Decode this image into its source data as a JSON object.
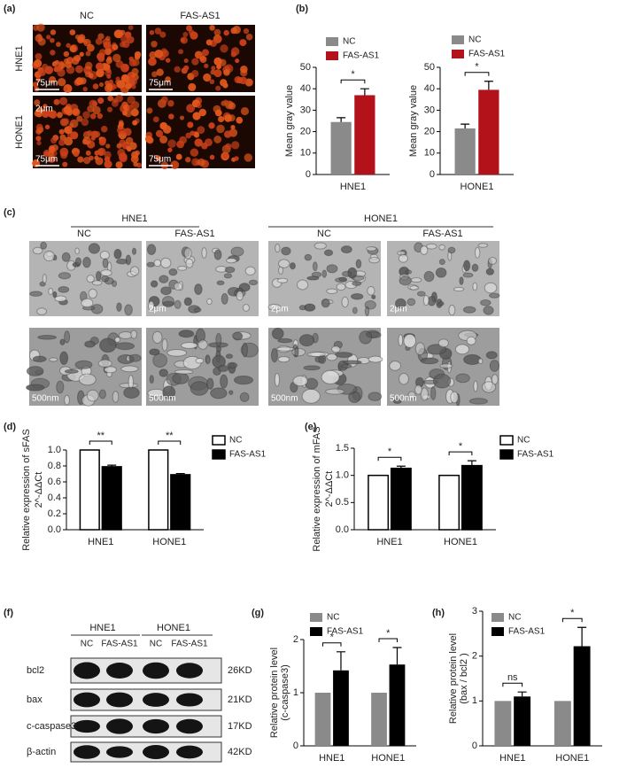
{
  "panel_labels": [
    "(a)",
    "(b)",
    "(c)",
    "(d)",
    "(e)",
    "(f)",
    "(g)",
    "(h)"
  ],
  "panel_a": {
    "columns": [
      "NC",
      "FAS-AS1"
    ],
    "rows": [
      "HNE1",
      "HONE1"
    ],
    "scale_labels": [
      "75μm",
      "75μm",
      "75μm",
      "75μm"
    ],
    "inset_label": "2μm"
  },
  "panel_c": {
    "groups": [
      {
        "name": "HNE1",
        "conditions": [
          "NC",
          "FAS-AS1"
        ]
      },
      {
        "name": "HONE1",
        "conditions": [
          "NC",
          "FAS-AS1"
        ]
      }
    ],
    "top_scale_labels": [
      "2μm",
      "2μm",
      "2μm"
    ],
    "bottom_scale_labels": [
      "500nm",
      "500nm",
      "500nm",
      "500nm"
    ]
  },
  "panel_f": {
    "groups": [
      "HNE1",
      "HONE1"
    ],
    "lanes": [
      "NC",
      "FAS-AS1",
      "NC",
      "FAS-AS1"
    ],
    "proteins": [
      {
        "name": "bcl2",
        "size": "26KD"
      },
      {
        "name": "bax",
        "size": "21KD"
      },
      {
        "name": "c-caspase3",
        "size": "17KD"
      },
      {
        "name": "β-actin",
        "size": "42KD"
      }
    ]
  },
  "chart_data": [
    {
      "type": "bar",
      "ylabel": [
        "Mean gray value"
      ],
      "categories": [
        "HNE1"
      ],
      "series": [
        {
          "name": "NC",
          "color": "#8a8a8a",
          "values": [
            24.5
          ],
          "errors": [
            2
          ]
        },
        {
          "name": "FAS-AS1",
          "color": "#b3121b",
          "values": [
            37
          ],
          "errors": [
            3
          ]
        }
      ],
      "significance": [
        "*"
      ],
      "ylim": [
        0,
        50
      ],
      "yticks": [
        0,
        10,
        20,
        30,
        40,
        50
      ]
    },
    {
      "type": "bar",
      "ylabel": [
        "Mean gray value"
      ],
      "categories": [
        "HONE1"
      ],
      "series": [
        {
          "name": "NC",
          "color": "#8a8a8a",
          "values": [
            21.5
          ],
          "errors": [
            2
          ]
        },
        {
          "name": "FAS-AS1",
          "color": "#b3121b",
          "values": [
            39.5
          ],
          "errors": [
            4
          ]
        }
      ],
      "significance": [
        "*"
      ],
      "ylim": [
        0,
        50
      ],
      "yticks": [
        0,
        10,
        20,
        30,
        40,
        50
      ]
    },
    {
      "type": "bar",
      "ylabel": [
        "Relative expression of sFAS",
        "2^-ΔΔCt"
      ],
      "categories": [
        "HNE1",
        "HONE1"
      ],
      "edgecolor": "#000000",
      "series": [
        {
          "name": "NC",
          "color": "#ffffff",
          "values": [
            1.0,
            1.0
          ],
          "errors": [
            null,
            null
          ]
        },
        {
          "name": "FAS-AS1",
          "color": "#000000",
          "values": [
            0.79,
            0.69
          ],
          "errors": [
            0.02,
            0.015
          ]
        }
      ],
      "significance": [
        "**",
        "**"
      ],
      "ylim": [
        0,
        1.0
      ],
      "yticks": [
        {
          "value": 0,
          "label": "0.0"
        },
        0.2,
        0.4,
        0.6,
        0.8,
        {
          "value": 1,
          "label": "1.0"
        }
      ]
    },
    {
      "type": "bar",
      "ylabel": [
        "Relative expression of mFAS",
        "2^-ΔΔCt"
      ],
      "categories": [
        "HNE1",
        "HONE1"
      ],
      "edgecolor": "#000000",
      "series": [
        {
          "name": "NC",
          "color": "#ffffff",
          "values": [
            1.0,
            1.0
          ],
          "errors": [
            null,
            null
          ]
        },
        {
          "name": "FAS-AS1",
          "color": "#000000",
          "values": [
            1.13,
            1.18
          ],
          "errors": [
            0.04,
            0.09
          ]
        }
      ],
      "significance": [
        "*",
        "*"
      ],
      "ylim": [
        0,
        1.5
      ],
      "yticks": [
        {
          "value": 0,
          "label": "0.0"
        },
        0.5,
        {
          "value": 1,
          "label": "1.0"
        },
        1.5
      ]
    },
    {
      "type": "bar",
      "ylabel": [
        "Relative protein level",
        "(c-caspase3)"
      ],
      "categories": [
        "HNE1",
        "HONE1"
      ],
      "series": [
        {
          "name": "NC",
          "color": "#8a8a8a",
          "values": [
            1,
            1
          ],
          "errors": [
            null,
            null
          ]
        },
        {
          "name": "FAS-AS1",
          "color": "#000000",
          "values": [
            1.42,
            1.53
          ],
          "errors": [
            0.35,
            0.32
          ]
        }
      ],
      "significance": [
        "*",
        "*"
      ],
      "ylim": [
        0,
        2
      ],
      "yticks": [
        0,
        1,
        2
      ]
    },
    {
      "type": "bar",
      "ylabel": [
        "Relative protein level",
        "(bax / bcl2 )"
      ],
      "categories": [
        "HNE1",
        "HONE1"
      ],
      "series": [
        {
          "name": "NC",
          "color": "#8a8a8a",
          "values": [
            1,
            1
          ],
          "errors": [
            null,
            null
          ]
        },
        {
          "name": "FAS-AS1",
          "color": "#000000",
          "values": [
            1.1,
            2.22
          ],
          "errors": [
            0.1,
            0.42
          ]
        }
      ],
      "significance": [
        "ns",
        "*"
      ],
      "ylim": [
        0,
        3
      ],
      "yticks": [
        0,
        1,
        2,
        3
      ]
    }
  ]
}
